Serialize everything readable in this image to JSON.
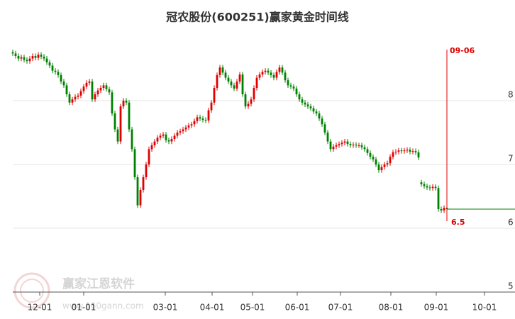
{
  "chart_data": {
    "type": "candlestick",
    "title": "冠农股份(600251)赢家黄金时间线",
    "up_color": "#e00000",
    "down_color": "#008000",
    "ylim": [
      5,
      9.1
    ],
    "yticks": [
      5,
      6,
      7,
      8
    ],
    "grid": true,
    "xlim": [
      0,
      177
    ],
    "xticks": [
      {
        "value": 9.5,
        "label": "12-01"
      },
      {
        "value": 25,
        "label": "01-01"
      },
      {
        "value": 53.75,
        "label": "03-01"
      },
      {
        "value": 70.25,
        "label": "04-01"
      },
      {
        "value": 84.5,
        "label": "05-01"
      },
      {
        "value": 100.25,
        "label": "06-01"
      },
      {
        "value": 115.5,
        "label": "07-01"
      },
      {
        "value": 133.25,
        "label": "08-01"
      },
      {
        "value": 149.25,
        "label": "09-01"
      },
      {
        "value": 166.25,
        "label": "10-01"
      }
    ],
    "ohlc": [
      [
        8.76,
        8.8,
        8.7,
        8.74
      ],
      [
        8.74,
        8.78,
        8.66,
        8.7
      ],
      [
        8.7,
        8.74,
        8.62,
        8.66
      ],
      [
        8.66,
        8.72,
        8.62,
        8.68
      ],
      [
        8.68,
        8.72,
        8.6,
        8.64
      ],
      [
        8.64,
        8.68,
        8.58,
        8.62
      ],
      [
        8.62,
        8.7,
        8.58,
        8.66
      ],
      [
        8.66,
        8.74,
        8.62,
        8.7
      ],
      [
        8.7,
        8.74,
        8.63,
        8.67
      ],
      [
        8.67,
        8.76,
        8.63,
        8.72
      ],
      [
        8.72,
        8.76,
        8.65,
        8.69
      ],
      [
        8.69,
        8.73,
        8.62,
        8.66
      ],
      [
        8.66,
        8.7,
        8.56,
        8.6
      ],
      [
        8.6,
        8.64,
        8.51,
        8.55
      ],
      [
        8.55,
        8.59,
        8.43,
        8.47
      ],
      [
        8.47,
        8.51,
        8.41,
        8.45
      ],
      [
        8.45,
        8.49,
        8.36,
        8.4
      ],
      [
        8.4,
        8.44,
        8.26,
        8.3
      ],
      [
        8.3,
        8.34,
        8.2,
        8.24
      ],
      [
        8.24,
        8.28,
        8.06,
        8.1
      ],
      [
        8.1,
        8.14,
        7.93,
        7.97
      ],
      [
        7.97,
        8.06,
        7.93,
        8.02
      ],
      [
        8.02,
        8.1,
        7.98,
        8.06
      ],
      [
        8.06,
        8.12,
        8.02,
        8.08
      ],
      [
        8.08,
        8.19,
        8.04,
        8.15
      ],
      [
        8.15,
        8.26,
        8.11,
        8.22
      ],
      [
        8.22,
        8.32,
        8.18,
        8.28
      ],
      [
        8.28,
        8.34,
        8.24,
        8.3
      ],
      [
        8.3,
        8.34,
        7.98,
        8.02
      ],
      [
        8.02,
        8.14,
        7.98,
        8.1
      ],
      [
        8.1,
        8.2,
        8.06,
        8.16
      ],
      [
        8.16,
        8.24,
        8.12,
        8.2
      ],
      [
        8.2,
        8.28,
        8.16,
        8.24
      ],
      [
        8.24,
        8.28,
        8.14,
        8.18
      ],
      [
        8.18,
        8.22,
        8.09,
        8.13
      ],
      [
        8.13,
        8.17,
        7.76,
        7.8
      ],
      [
        7.8,
        7.84,
        7.51,
        7.55
      ],
      [
        7.55,
        7.59,
        7.32,
        7.36
      ],
      [
        7.36,
        7.95,
        7.32,
        7.91
      ],
      [
        7.91,
        8.04,
        7.87,
        8.0
      ],
      [
        8.0,
        8.04,
        7.93,
        7.97
      ],
      [
        7.97,
        8.01,
        7.51,
        7.55
      ],
      [
        7.55,
        7.59,
        7.2,
        7.24
      ],
      [
        7.24,
        7.28,
        6.76,
        6.8
      ],
      [
        6.8,
        6.84,
        6.32,
        6.36
      ],
      [
        6.36,
        6.64,
        6.32,
        6.6
      ],
      [
        6.6,
        6.84,
        6.56,
        6.8
      ],
      [
        6.8,
        7.04,
        6.76,
        7.0
      ],
      [
        7.0,
        7.28,
        6.96,
        7.24
      ],
      [
        7.24,
        7.34,
        7.2,
        7.3
      ],
      [
        7.3,
        7.4,
        7.26,
        7.36
      ],
      [
        7.36,
        7.46,
        7.32,
        7.42
      ],
      [
        7.42,
        7.49,
        7.38,
        7.45
      ],
      [
        7.45,
        7.51,
        7.41,
        7.47
      ],
      [
        7.47,
        7.51,
        7.34,
        7.38
      ],
      [
        7.38,
        7.42,
        7.32,
        7.36
      ],
      [
        7.36,
        7.44,
        7.32,
        7.4
      ],
      [
        7.4,
        7.49,
        7.36,
        7.45
      ],
      [
        7.45,
        7.54,
        7.41,
        7.5
      ],
      [
        7.5,
        7.56,
        7.46,
        7.52
      ],
      [
        7.52,
        7.59,
        7.48,
        7.55
      ],
      [
        7.55,
        7.62,
        7.51,
        7.58
      ],
      [
        7.58,
        7.65,
        7.54,
        7.61
      ],
      [
        7.61,
        7.67,
        7.57,
        7.63
      ],
      [
        7.63,
        7.72,
        7.59,
        7.68
      ],
      [
        7.68,
        7.78,
        7.64,
        7.74
      ],
      [
        7.74,
        7.78,
        7.68,
        7.72
      ],
      [
        7.72,
        7.76,
        7.66,
        7.7
      ],
      [
        7.7,
        7.74,
        7.65,
        7.69
      ],
      [
        7.69,
        7.89,
        7.65,
        7.85
      ],
      [
        7.85,
        8.01,
        7.81,
        7.97
      ],
      [
        7.97,
        8.24,
        7.93,
        8.2
      ],
      [
        8.2,
        8.44,
        8.16,
        8.4
      ],
      [
        8.4,
        8.56,
        8.36,
        8.52
      ],
      [
        8.52,
        8.56,
        8.4,
        8.44
      ],
      [
        8.44,
        8.48,
        8.32,
        8.36
      ],
      [
        8.36,
        8.4,
        8.26,
        8.3
      ],
      [
        8.3,
        8.34,
        8.2,
        8.24
      ],
      [
        8.24,
        8.28,
        8.15,
        8.19
      ],
      [
        8.19,
        8.34,
        8.15,
        8.3
      ],
      [
        8.3,
        8.45,
        8.26,
        8.41
      ],
      [
        8.41,
        8.45,
        8.06,
        8.1
      ],
      [
        8.1,
        8.14,
        7.87,
        7.91
      ],
      [
        7.91,
        7.99,
        7.87,
        7.95
      ],
      [
        7.95,
        8.06,
        7.91,
        8.02
      ],
      [
        8.02,
        8.24,
        7.98,
        8.2
      ],
      [
        8.2,
        8.4,
        8.16,
        8.36
      ],
      [
        8.36,
        8.45,
        8.32,
        8.41
      ],
      [
        8.41,
        8.49,
        8.37,
        8.45
      ],
      [
        8.45,
        8.51,
        8.41,
        8.47
      ],
      [
        8.47,
        8.51,
        8.4,
        8.44
      ],
      [
        8.44,
        8.48,
        8.36,
        8.4
      ],
      [
        8.4,
        8.44,
        8.32,
        8.36
      ],
      [
        8.36,
        8.49,
        8.32,
        8.45
      ],
      [
        8.45,
        8.56,
        8.41,
        8.52
      ],
      [
        8.52,
        8.56,
        8.4,
        8.44
      ],
      [
        8.44,
        8.48,
        8.28,
        8.32
      ],
      [
        8.32,
        8.36,
        8.2,
        8.24
      ],
      [
        8.24,
        8.28,
        8.18,
        8.22
      ],
      [
        8.22,
        8.26,
        8.15,
        8.19
      ],
      [
        8.19,
        8.23,
        8.06,
        8.1
      ],
      [
        8.1,
        8.14,
        7.98,
        8.02
      ],
      [
        8.02,
        8.06,
        7.93,
        7.97
      ],
      [
        7.97,
        8.01,
        7.9,
        7.94
      ],
      [
        7.94,
        7.98,
        7.87,
        7.91
      ],
      [
        7.91,
        7.95,
        7.84,
        7.88
      ],
      [
        7.88,
        7.92,
        7.79,
        7.83
      ],
      [
        7.83,
        7.87,
        7.76,
        7.8
      ],
      [
        7.8,
        7.84,
        7.68,
        7.72
      ],
      [
        7.72,
        7.76,
        7.59,
        7.63
      ],
      [
        7.63,
        7.67,
        7.46,
        7.5
      ],
      [
        7.5,
        7.54,
        7.32,
        7.36
      ],
      [
        7.36,
        7.4,
        7.2,
        7.24
      ],
      [
        7.24,
        7.32,
        7.2,
        7.28
      ],
      [
        7.28,
        7.34,
        7.24,
        7.3
      ],
      [
        7.3,
        7.36,
        7.26,
        7.32
      ],
      [
        7.32,
        7.38,
        7.28,
        7.34
      ],
      [
        7.34,
        7.4,
        7.3,
        7.36
      ],
      [
        7.36,
        7.4,
        7.28,
        7.32
      ],
      [
        7.32,
        7.36,
        7.26,
        7.3
      ],
      [
        7.3,
        7.35,
        7.26,
        7.31
      ],
      [
        7.31,
        7.35,
        7.26,
        7.3
      ],
      [
        7.3,
        7.34,
        7.26,
        7.3
      ],
      [
        7.3,
        7.34,
        7.23,
        7.27
      ],
      [
        7.27,
        7.31,
        7.2,
        7.24
      ],
      [
        7.24,
        7.28,
        7.14,
        7.18
      ],
      [
        7.18,
        7.22,
        7.08,
        7.12
      ],
      [
        7.12,
        7.16,
        7.04,
        7.08
      ],
      [
        7.08,
        7.12,
        6.96,
        7.0
      ],
      [
        7.0,
        7.04,
        6.87,
        6.91
      ],
      [
        6.91,
        7.0,
        6.87,
        6.96
      ],
      [
        6.96,
        7.04,
        6.92,
        7.0
      ],
      [
        7.0,
        7.06,
        6.96,
        7.02
      ],
      [
        7.02,
        7.16,
        6.98,
        7.12
      ],
      [
        7.12,
        7.23,
        7.08,
        7.19
      ],
      [
        7.19,
        7.24,
        7.15,
        7.2
      ],
      [
        7.2,
        7.26,
        7.16,
        7.22
      ],
      [
        7.22,
        7.26,
        7.17,
        7.21
      ],
      [
        7.21,
        7.26,
        7.17,
        7.22
      ],
      [
        7.22,
        7.27,
        7.18,
        7.23
      ],
      [
        7.23,
        7.27,
        7.16,
        7.2
      ],
      [
        7.2,
        7.25,
        7.16,
        7.21
      ],
      [
        7.21,
        7.25,
        7.15,
        7.19
      ],
      [
        7.19,
        7.23,
        7.07,
        7.11
      ],
      [
        6.72,
        6.76,
        6.65,
        6.69
      ],
      [
        6.69,
        6.73,
        6.62,
        6.66
      ],
      [
        6.66,
        6.7,
        6.6,
        6.64
      ],
      [
        6.64,
        6.68,
        6.59,
        6.63
      ],
      [
        6.63,
        6.69,
        6.59,
        6.65
      ],
      [
        6.65,
        6.69,
        6.59,
        6.63
      ],
      [
        6.63,
        6.67,
        6.26,
        6.3
      ],
      [
        6.3,
        6.34,
        6.24,
        6.28
      ],
      [
        6.28,
        6.36,
        6.24,
        6.32
      ],
      [
        6.32,
        6.36,
        6.26,
        6.3
      ]
    ],
    "last_price_line": {
      "value": 6.3,
      "color": "#008000"
    },
    "marker": {
      "index": 153,
      "label": "09-06",
      "value_label": "6.5",
      "color": "#e00000"
    },
    "watermark": {
      "name": "赢家江恩软件",
      "url": "www.160gann.com"
    }
  }
}
